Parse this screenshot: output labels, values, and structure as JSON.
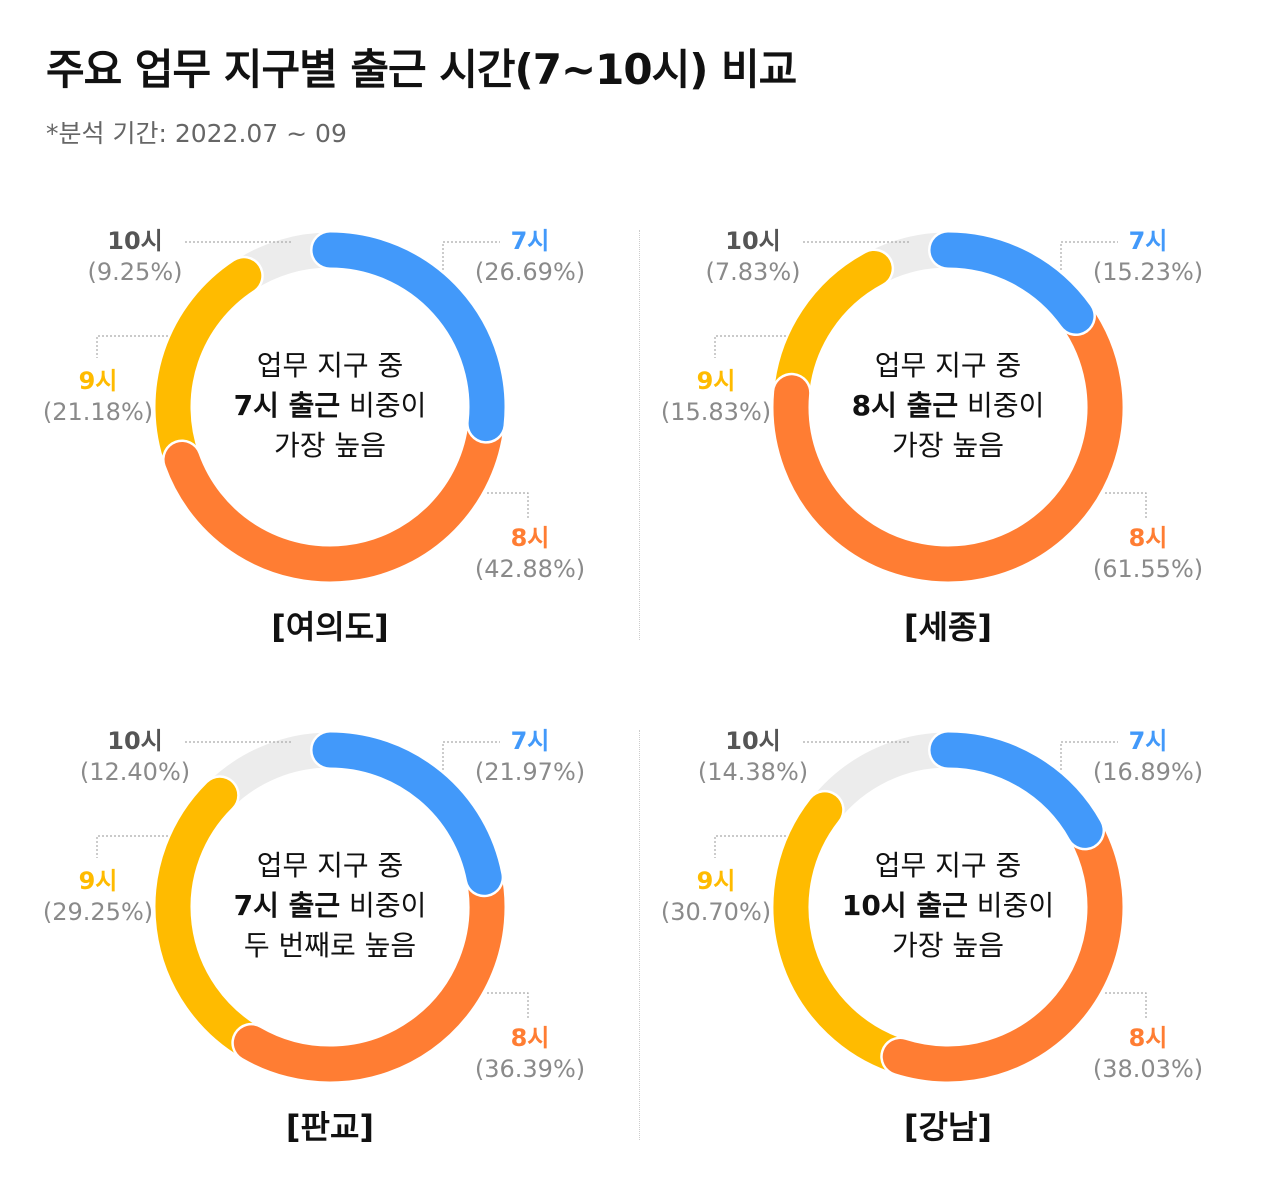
{
  "title": "주요 업무 지구별 출근 시간(7~10시) 비교",
  "subtitle": "*분석 기간: 2022.07 ~ 09",
  "colors": {
    "7시": "#4299fa",
    "8시": "#ff7d33",
    "9시": "#ffbb00",
    "10시": "#ececec"
  },
  "chart_data": [
    {
      "type": "pie",
      "region": "[여의도]",
      "categories": [
        "7시",
        "8시",
        "9시",
        "10시"
      ],
      "values": [
        26.69,
        42.88,
        21.18,
        9.25
      ],
      "percent_labels": [
        "(26.69%)",
        "(42.88%)",
        "(21.18%)",
        "(9.25%)"
      ],
      "center_text": {
        "line1": "업무 지구 중",
        "line2_bold": "7시 출근",
        "line2_rest": " 비중이",
        "line3": "가장 높음"
      }
    },
    {
      "type": "pie",
      "region": "[세종]",
      "categories": [
        "7시",
        "8시",
        "9시",
        "10시"
      ],
      "values": [
        15.23,
        61.55,
        15.83,
        7.83
      ],
      "percent_labels": [
        "(15.23%)",
        "(61.55%)",
        "(15.83%)",
        "(7.83%)"
      ],
      "center_text": {
        "line1": "업무 지구 중",
        "line2_bold": "8시 출근",
        "line2_rest": " 비중이",
        "line3": "가장 높음"
      }
    },
    {
      "type": "pie",
      "region": "[판교]",
      "categories": [
        "7시",
        "8시",
        "9시",
        "10시"
      ],
      "values": [
        21.97,
        36.39,
        29.25,
        12.4
      ],
      "percent_labels": [
        "(21.97%)",
        "(36.39%)",
        "(29.25%)",
        "(12.40%)"
      ],
      "center_text": {
        "line1": "업무 지구 중",
        "line2_bold": "7시 출근",
        "line2_rest": " 비중이",
        "line3": "두 번째로 높음"
      }
    },
    {
      "type": "pie",
      "region": "[강남]",
      "categories": [
        "7시",
        "8시",
        "9시",
        "10시"
      ],
      "values": [
        16.89,
        38.03,
        30.7,
        14.38
      ],
      "percent_labels": [
        "(16.89%)",
        "(38.03%)",
        "(30.70%)",
        "(14.38%)"
      ],
      "center_text": {
        "line1": "업무 지구 중",
        "line2_bold": "10시 출근",
        "line2_rest": " 비중이",
        "line3": "가장 높음"
      }
    }
  ]
}
